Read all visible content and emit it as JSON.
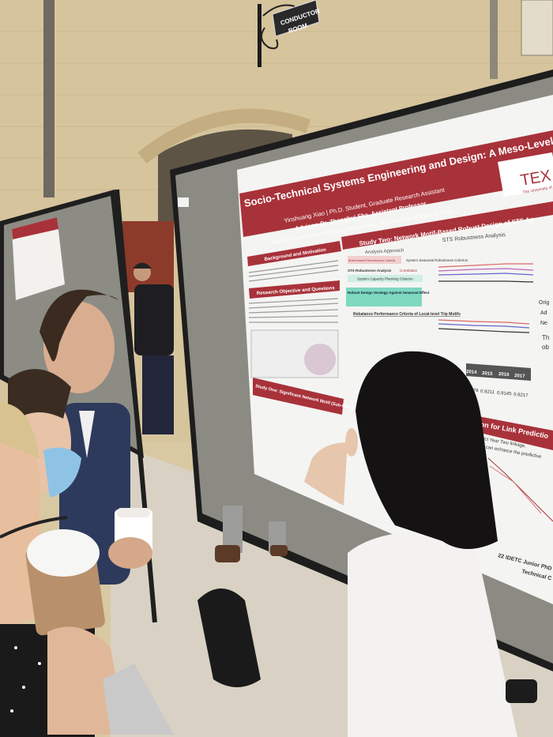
{
  "sign": {
    "line1": "CONDUCTOR",
    "line2": "ROOM"
  },
  "poster": {
    "title": "Socio-Technical Systems Engineering and Design: A Meso-Level Network-Bas",
    "author": "Yinshuang Xiao | Ph.D. Student, Graduate Research Assistant",
    "advisor": "Advisor: Dr. Zhenghui Sha, Assistant Professor",
    "department": "Walker Department of Mechanical Engineering, The University of Texas at Austin",
    "logo_text": "TEX",
    "logo_sub": "The University of",
    "sections": {
      "background": "Background and Motivation",
      "research": "Research Objective and Questions",
      "study_one": "Study One: Significant Network Motif (Sub-Network) Identification and Feature Extraction",
      "study_two": "Study Two: Network Motif-Based Robust Design of STS Ag",
      "analysis": "Analysis Approach",
      "robustness": "STS Robustness Analysis",
      "robust_design": "Robust Design Strategy Against Seasonal Effect",
      "rebalance": "Rebalance Performance Criteria of Local-level Trip Motifs",
      "link_prediction": "ation for Link Predictio",
      "footer": "22 IDETC Junior PhD S",
      "footer2": "Technical C"
    },
    "flow": {
      "motif": "Motif-based Performance Criteria",
      "seasonal": "System Seasonal Robustness Criterion",
      "sts_robustness": "STS Robustness Analysis",
      "correlation": "Correlation",
      "capacity": "System Capacity Planning Criterion"
    },
    "link_text": [
      "predict Year Two linkage.",
      "ation can enhance the predictive"
    ],
    "table": {
      "years": [
        "2014",
        "2015",
        "2016",
        "2017"
      ],
      "values": [
        "0.8479",
        "0.9211",
        "0.9145",
        "0.9217"
      ]
    },
    "side_text": [
      "Orig",
      "Ad",
      "Ne",
      "Th",
      "ob"
    ]
  },
  "colors": {
    "brand_red": "#a8323a",
    "board_gray": "#8a8a82",
    "wall": "#d8c9a3"
  }
}
